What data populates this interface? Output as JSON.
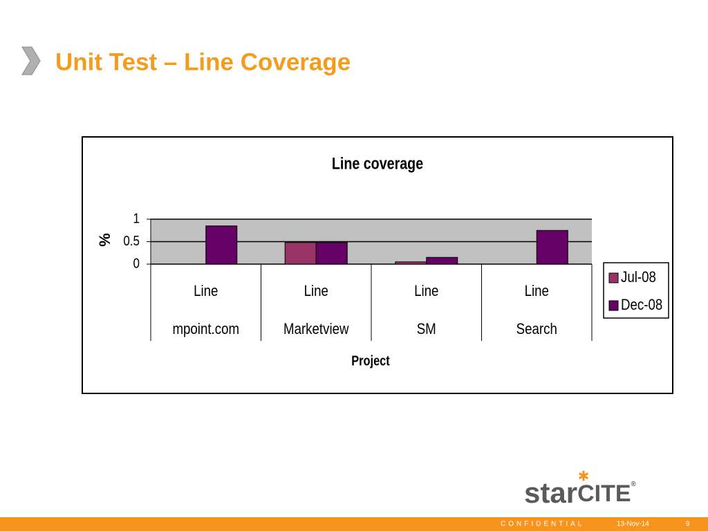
{
  "slide": {
    "title": "Unit Test – Line Coverage",
    "logo": {
      "first": "star",
      "second": "CITE",
      "mark": "®"
    },
    "footer": {
      "label": "CONFIDENTIAL",
      "date": "13-Nov-14",
      "page": "9"
    }
  },
  "chart_data": {
    "type": "bar",
    "title": "Line coverage",
    "x_label": "Project",
    "y_label": "%",
    "categories": [
      [
        "Line",
        "mpoint.com"
      ],
      [
        "Line",
        "Marketview"
      ],
      [
        "Line",
        "SM"
      ],
      [
        "Line",
        "Search"
      ]
    ],
    "series": [
      {
        "name": "Jul-08",
        "color": "#993366",
        "values": [
          0,
          0.48,
          0.05,
          0
        ]
      },
      {
        "name": "Dec-08",
        "color": "#660066",
        "values": [
          0.85,
          0.48,
          0.15,
          0.75
        ]
      }
    ],
    "ylim": [
      0,
      1
    ],
    "yticks": [
      0,
      0.5,
      1
    ],
    "grid": true,
    "legend": "right"
  }
}
